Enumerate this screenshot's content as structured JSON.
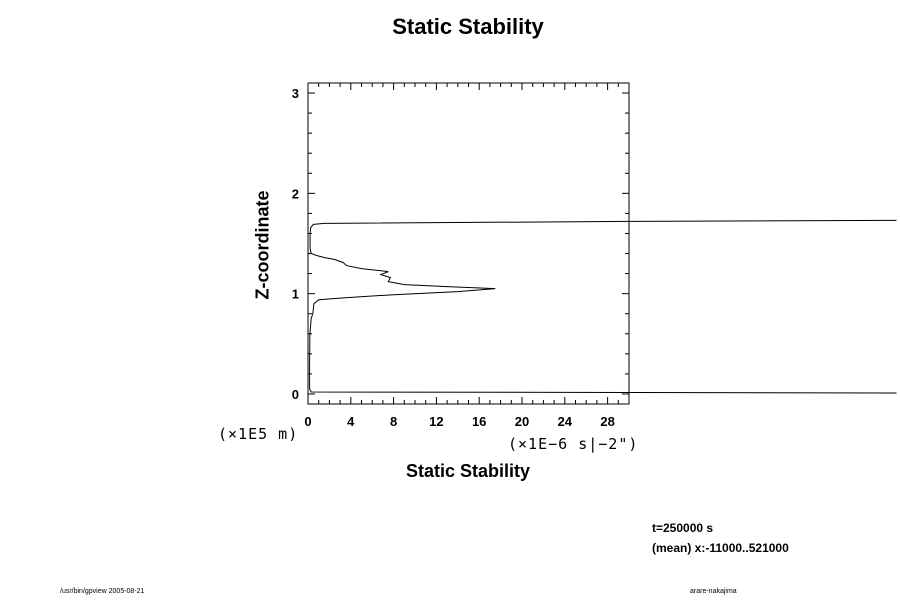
{
  "chart_data": {
    "type": "line",
    "title": "Static Stability",
    "xlabel": "Static Stability",
    "ylabel": "Z-coordinate",
    "x_unit_label": "(×1E−6 s|−2\")",
    "y_unit_label": "(×1E5 m)",
    "xlim": [
      0,
      30
    ],
    "ylim": [
      -0.1,
      3.1
    ],
    "x_ticks": [
      0,
      4,
      8,
      12,
      16,
      20,
      24,
      28
    ],
    "y_ticks": [
      0,
      1,
      2,
      3
    ],
    "grid": false,
    "series": [
      {
        "color": "#000000",
        "points": [
          [
            55,
            0.01
          ],
          [
            30,
            0.015
          ],
          [
            0.3,
            0.02
          ],
          [
            0.15,
            0.05
          ],
          [
            0.15,
            0.3
          ],
          [
            0.18,
            0.6
          ],
          [
            0.3,
            0.75
          ],
          [
            0.45,
            0.8
          ],
          [
            0.5,
            0.85
          ],
          [
            0.55,
            0.9
          ],
          [
            1.0,
            0.94
          ],
          [
            3.5,
            0.96
          ],
          [
            8.0,
            0.99
          ],
          [
            14.0,
            1.02
          ],
          [
            17.5,
            1.05
          ],
          [
            13.0,
            1.07
          ],
          [
            9.0,
            1.09
          ],
          [
            7.5,
            1.12
          ],
          [
            7.7,
            1.16
          ],
          [
            6.8,
            1.19
          ],
          [
            7.5,
            1.22
          ],
          [
            5.0,
            1.25
          ],
          [
            3.6,
            1.28
          ],
          [
            3.3,
            1.31
          ],
          [
            2.5,
            1.34
          ],
          [
            1.5,
            1.36
          ],
          [
            0.8,
            1.38
          ],
          [
            0.3,
            1.4
          ],
          [
            0.2,
            1.45
          ],
          [
            0.2,
            1.5
          ],
          [
            0.2,
            1.6
          ],
          [
            0.25,
            1.66
          ],
          [
            0.5,
            1.69
          ],
          [
            1.5,
            1.7
          ],
          [
            30,
            1.72
          ],
          [
            55,
            1.73
          ]
        ]
      }
    ]
  },
  "annotations": {
    "time": "t=250000 s",
    "mean_range": "(mean) x:-11000..521000"
  },
  "footer": {
    "left": "/usr/bin/gpview 2005-08-21",
    "right": "arare-nakajima"
  },
  "colors": {
    "background": "#ffffff",
    "axis": "#000000",
    "line": "#000000"
  }
}
